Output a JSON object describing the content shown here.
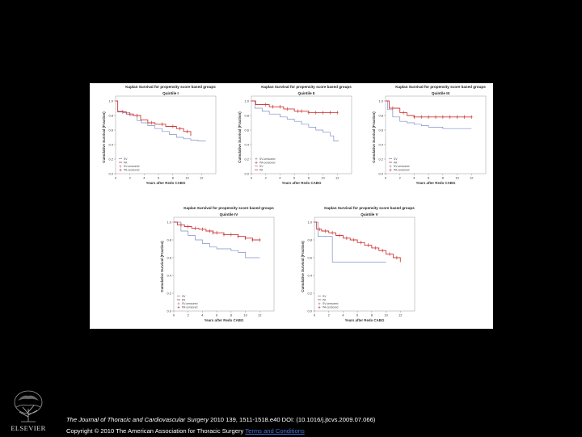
{
  "chart_data": [
    {
      "type": "line",
      "title": "Kaplan Survival for propensity score based groups",
      "subtitle": "Quintile I",
      "xlabel": "Years after Redo CABG",
      "ylabel": "Cumulative Survival (Fraction)",
      "xlim": [
        0,
        14
      ],
      "ylim": [
        0,
        1.0
      ],
      "xticks": [
        "0",
        "2",
        "4",
        "6",
        "8",
        "10",
        "12"
      ],
      "yticks": [
        "0.0",
        "0.2",
        "0.4",
        "0.6",
        "0.8",
        "1.0"
      ],
      "legend": [
        "SV",
        "PA",
        "SV-censored",
        "PA-censored"
      ],
      "legend_position": "bottom-left",
      "series": [
        {
          "name": "SV",
          "color": "#7d8fc9",
          "x": [
            0,
            0.3,
            1,
            2,
            3,
            3.6,
            4.5,
            5.5,
            6.5,
            7.5,
            8.5,
            9.5,
            10.5,
            11.5,
            12.6
          ],
          "y": [
            1,
            0.86,
            0.84,
            0.8,
            0.73,
            0.7,
            0.66,
            0.62,
            0.58,
            0.54,
            0.5,
            0.48,
            0.46,
            0.45,
            0.45
          ]
        },
        {
          "name": "PA",
          "color": "#d03a3a",
          "x": [
            0,
            0.3,
            1.5,
            2.5,
            3.5,
            4.5,
            5.5,
            7,
            8.5,
            9.5,
            10.5
          ],
          "y": [
            1,
            0.85,
            0.82,
            0.8,
            0.74,
            0.7,
            0.68,
            0.65,
            0.62,
            0.58,
            0.52
          ],
          "censored_x": [
            1,
            2,
            3,
            5,
            6.5,
            8,
            9,
            10
          ]
        }
      ]
    },
    {
      "type": "line",
      "title": "Kaplan Survival for propensity score based groups",
      "subtitle": "Quintile II",
      "xlabel": "Years after Redo CABG",
      "ylabel": "Cumulative Survival (Fraction)",
      "xlim": [
        0,
        14
      ],
      "ylim": [
        0,
        1.0
      ],
      "xticks": [
        "0",
        "2",
        "4",
        "6",
        "8",
        "10",
        "12"
      ],
      "yticks": [
        "0.0",
        "0.2",
        "0.4",
        "0.6",
        "0.8",
        "1.0"
      ],
      "legend": [
        "SV-censored",
        "PA-censored",
        "SV",
        "PA"
      ],
      "legend_position": "bottom-left",
      "series": [
        {
          "name": "SV",
          "color": "#7d8fc9",
          "x": [
            0,
            0.5,
            1.5,
            2.5,
            4,
            5,
            6,
            7,
            8,
            9,
            10,
            11,
            11.5,
            12.2
          ],
          "y": [
            1,
            0.9,
            0.86,
            0.82,
            0.78,
            0.75,
            0.72,
            0.68,
            0.64,
            0.6,
            0.57,
            0.52,
            0.45,
            0.45
          ]
        },
        {
          "name": "PA",
          "color": "#d03a3a",
          "x": [
            0,
            0.6,
            2.5,
            4.5,
            6,
            8,
            10,
            12
          ],
          "y": [
            1,
            0.95,
            0.92,
            0.89,
            0.86,
            0.84,
            0.84,
            0.84
          ],
          "censored_x": [
            2,
            3,
            4,
            5,
            6.5,
            7,
            8,
            9,
            10,
            11,
            12
          ]
        }
      ]
    },
    {
      "type": "line",
      "title": "Kaplan Survival for propensity score based groups",
      "subtitle": "Quintile III",
      "xlabel": "Years after Redo CABG",
      "ylabel": "Cumulative Survival (Fraction)",
      "xlim": [
        0,
        14
      ],
      "ylim": [
        0,
        1.0
      ],
      "xticks": [
        "0",
        "2",
        "4",
        "6",
        "8",
        "10",
        "12"
      ],
      "yticks": [
        "0.0",
        "0.2",
        "0.4",
        "0.6",
        "0.8",
        "1.0"
      ],
      "legend": [
        "SV",
        "PA",
        "SV-censored",
        "PA-censored"
      ],
      "legend_position": "bottom-left",
      "series": [
        {
          "name": "SV",
          "color": "#7d8fc9",
          "x": [
            0,
            0.3,
            1,
            2,
            3,
            4,
            5,
            6,
            8,
            10,
            12
          ],
          "y": [
            1,
            0.88,
            0.78,
            0.72,
            0.7,
            0.68,
            0.66,
            0.64,
            0.62,
            0.62,
            0.62
          ]
        },
        {
          "name": "PA",
          "color": "#d03a3a",
          "x": [
            0,
            0.5,
            2,
            3,
            4,
            6,
            8,
            10,
            12
          ],
          "y": [
            1,
            0.9,
            0.84,
            0.8,
            0.78,
            0.78,
            0.78,
            0.78,
            0.78
          ],
          "censored_x": [
            1,
            2.5,
            4,
            5,
            6,
            7,
            8,
            9,
            10,
            11,
            12
          ]
        }
      ]
    },
    {
      "type": "line",
      "title": "Kaplan Survival for propensity score based groups",
      "subtitle": "Quintile IV",
      "xlabel": "Years after Redo CABG",
      "ylabel": "Cumulative Survival (Fraction)",
      "xlim": [
        0,
        14
      ],
      "ylim": [
        0,
        1.0
      ],
      "xticks": [
        "0",
        "2",
        "4",
        "6",
        "8",
        "10",
        "12"
      ],
      "yticks": [
        "0.0",
        "0.2",
        "0.4",
        "0.6",
        "0.8",
        "1.0"
      ],
      "legend": [
        "SV",
        "PA",
        "SV-censored",
        "PA-censored"
      ],
      "legend_position": "bottom-left",
      "series": [
        {
          "name": "SV",
          "color": "#7d8fc9",
          "x": [
            0,
            1,
            2,
            3,
            4,
            5,
            6,
            8,
            9,
            10,
            12
          ],
          "y": [
            1,
            0.9,
            0.85,
            0.8,
            0.76,
            0.72,
            0.7,
            0.68,
            0.66,
            0.6,
            0.6
          ]
        },
        {
          "name": "PA",
          "color": "#d03a3a",
          "x": [
            0,
            0.5,
            1.5,
            2.5,
            3.5,
            4.5,
            5.5,
            7,
            9,
            10,
            11,
            12
          ],
          "y": [
            1,
            0.97,
            0.95,
            0.93,
            0.92,
            0.9,
            0.88,
            0.86,
            0.84,
            0.82,
            0.8,
            0.8
          ],
          "censored_x": [
            1,
            2,
            3,
            4,
            5,
            5.5,
            6,
            7,
            8,
            9,
            10,
            11,
            12
          ]
        }
      ]
    },
    {
      "type": "line",
      "title": "Kaplan Survival for propensity score based groups",
      "subtitle": "Quintile V",
      "xlabel": "Years after Redo CABG",
      "ylabel": "Cumulative Survival (Fraction)",
      "xlim": [
        0,
        14
      ],
      "ylim": [
        0,
        1.0
      ],
      "xticks": [
        "0",
        "2",
        "4",
        "6",
        "8",
        "10",
        "12"
      ],
      "yticks": [
        "0.0",
        "0.2",
        "0.4",
        "0.6",
        "0.8",
        "1.0"
      ],
      "legend": [
        "SV",
        "PA",
        "SV-censored",
        "PA-censored"
      ],
      "legend_position": "bottom-left",
      "series": [
        {
          "name": "SV",
          "color": "#7d8fc9",
          "x": [
            0,
            0.5,
            2,
            2.5,
            4,
            6,
            8,
            10
          ],
          "y": [
            1,
            0.84,
            0.84,
            0.55,
            0.55,
            0.55,
            0.55,
            0.55
          ]
        },
        {
          "name": "PA",
          "color": "#d03a3a",
          "x": [
            0,
            0.3,
            1,
            2,
            3,
            4,
            5,
            6,
            7,
            8,
            9,
            10,
            11,
            12
          ],
          "y": [
            1,
            0.92,
            0.9,
            0.88,
            0.85,
            0.82,
            0.8,
            0.77,
            0.74,
            0.71,
            0.68,
            0.64,
            0.6,
            0.55
          ],
          "censored_x": [
            0.7,
            1.5,
            2.5,
            3.5,
            4.5,
            5.5,
            6.5,
            7.5,
            8.5,
            9.5,
            10.5,
            11.5
          ]
        }
      ]
    }
  ],
  "footer": {
    "journal": "The Journal of Thoracic and Cardiovascular Surgery",
    "citation": " 2010 139, 1511-1518.e40 DOI: (10.1016/j.jtcvs.2009.07.066)",
    "copyright": "Copyright © 2010 The American Association for Thoracic Surgery ",
    "terms": "Terms and Conditions"
  },
  "publisher": {
    "name": "ELSEVIER"
  }
}
